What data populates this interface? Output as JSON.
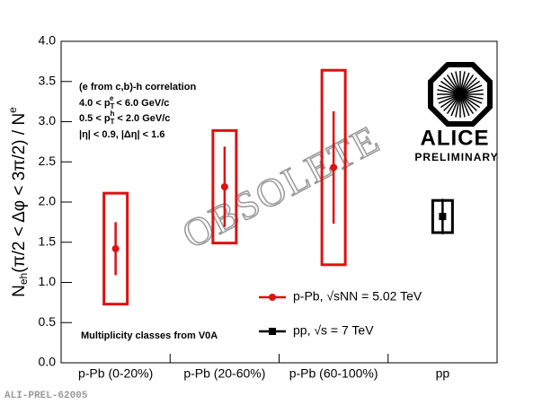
{
  "chart_data": {
    "type": "errorbar",
    "y_label": [
      "N",
      "eh",
      "(π/2 < Δφ < 3π/2) / N",
      "e"
    ],
    "categories": [
      "p-Pb (0-20%)",
      "p-Pb (20-60%)",
      "p-Pb (60-100%)",
      "pp"
    ],
    "series": [
      {
        "name": "p-Pb, √sNN = 5.02 TeV",
        "color": "#dd1111",
        "marker": "circle",
        "values": [
          1.42,
          2.19,
          2.43,
          null
        ],
        "errors": [
          0.33,
          0.5,
          0.7,
          null
        ],
        "sys_errors": [
          0.69,
          0.7,
          1.21,
          null
        ]
      },
      {
        "name": "pp, √s = 7 TeV",
        "color": "#000000",
        "marker": "square",
        "values": [
          null,
          null,
          null,
          1.82
        ],
        "errors": [
          null,
          null,
          null,
          0.22
        ],
        "sys_errors": [
          null,
          null,
          null,
          0.2
        ]
      }
    ],
    "ylim": [
      0,
      4
    ],
    "yticks": [
      {
        "value": 0,
        "label": "0.0"
      },
      0.5,
      {
        "value": 1,
        "label": "1.0"
      },
      1.5,
      {
        "value": 2,
        "label": "2.0"
      },
      2.5,
      {
        "value": 3,
        "label": "3.0"
      },
      3.5,
      {
        "value": 4,
        "label": "4.0"
      }
    ],
    "annotations": [
      [
        "(e from c,b)-h correlation"
      ],
      [
        "4.0 < p",
        "T",
        "e",
        " < 6.0 GeV/c"
      ],
      [
        "0.5 < p",
        "T",
        "h",
        " < 2.0 GeV/c"
      ],
      [
        "|η| < 0.9, |Δη| < 1.6"
      ],
      [
        "Multiplicity classes from V0A"
      ]
    ],
    "watermark": "OBSOLETE",
    "logo_title": "ALICE",
    "logo_subtitle": "PRELIMINARY",
    "figure_id": "ALI-PREL-62005"
  }
}
